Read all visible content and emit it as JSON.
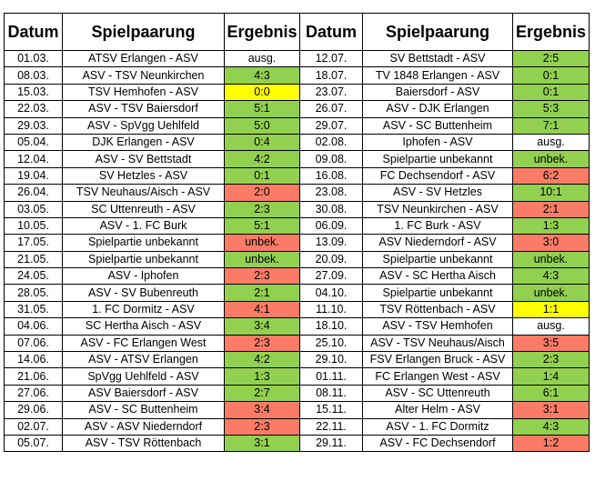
{
  "headers": [
    "Datum",
    "Spielpaarung",
    "Ergebnis",
    "Datum",
    "Spielpaarung",
    "Ergebnis"
  ],
  "colors": {
    "win": "#92d050",
    "loss": "#fa7c66",
    "draw": "#ffff00",
    "none": "#ffffff"
  },
  "rows": [
    {
      "left": {
        "date": "01.03.",
        "match": "ATSV Erlangen - ASV",
        "result": "ausg.",
        "status": "none"
      },
      "right": {
        "date": "12.07.",
        "match": "SV Bettstadt - ASV",
        "result": "2:5",
        "status": "win"
      }
    },
    {
      "left": {
        "date": "08.03.",
        "match": "ASV - TSV Neunkirchen",
        "result": "4:3",
        "status": "win"
      },
      "right": {
        "date": "18.07.",
        "match": "TV 1848 Erlangen - ASV",
        "result": "0:1",
        "status": "win"
      }
    },
    {
      "left": {
        "date": "15.03.",
        "match": "TSV Hemhofen - ASV",
        "result": "0:0",
        "status": "draw"
      },
      "right": {
        "date": "23.07.",
        "match": "Baiersdorf - ASV",
        "result": "0:1",
        "status": "win"
      }
    },
    {
      "left": {
        "date": "22.03.",
        "match": "ASV - TSV Baiersdorf",
        "result": "5:1",
        "status": "win"
      },
      "right": {
        "date": "26.07.",
        "match": "ASV - DJK Erlangen",
        "result": "5:3",
        "status": "win"
      }
    },
    {
      "left": {
        "date": "29.03.",
        "match": "ASV - SpVgg Uehlfeld",
        "result": "5:0",
        "status": "win"
      },
      "right": {
        "date": "29.07.",
        "match": "ASV - SC Buttenheim",
        "result": "7:1",
        "status": "win"
      }
    },
    {
      "left": {
        "date": "05.04.",
        "match": "DJK Erlangen - ASV",
        "result": "0:4",
        "status": "win"
      },
      "right": {
        "date": "02.08.",
        "match": "Iphofen - ASV",
        "result": "ausg.",
        "status": "none"
      }
    },
    {
      "left": {
        "date": "12.04.",
        "match": "ASV - SV Bettstadt",
        "result": "4:2",
        "status": "win"
      },
      "right": {
        "date": "09.08.",
        "match": "Spielpartie unbekannt",
        "result": "unbek.",
        "status": "win"
      }
    },
    {
      "left": {
        "date": "19.04.",
        "match": "SV Hetzles - ASV",
        "result": "0:1",
        "status": "win"
      },
      "right": {
        "date": "16.08.",
        "match": "FC Dechsendorf - ASV",
        "result": "6:2",
        "status": "loss"
      }
    },
    {
      "left": {
        "date": "26.04.",
        "match": "TSV Neuhaus/Aisch - ASV",
        "result": "2:0",
        "status": "loss"
      },
      "right": {
        "date": "23.08.",
        "match": "ASV - SV Hetzles",
        "result": "10:1",
        "status": "win"
      }
    },
    {
      "left": {
        "date": "03.05.",
        "match": "SC Uttenreuth - ASV",
        "result": "2:3",
        "status": "win"
      },
      "right": {
        "date": "30.08.",
        "match": "TSV Neunkirchen - ASV",
        "result": "2:1",
        "status": "loss"
      }
    },
    {
      "left": {
        "date": "10.05.",
        "match": "ASV - 1. FC Burk",
        "result": "5:1",
        "status": "win"
      },
      "right": {
        "date": "06.09.",
        "match": "1. FC Burk - ASV",
        "result": "1:3",
        "status": "win"
      }
    },
    {
      "left": {
        "date": "17.05.",
        "match": "Spielpartie unbekannt",
        "result": "unbek.",
        "status": "loss"
      },
      "right": {
        "date": "13.09.",
        "match": "ASV Niederndorf - ASV",
        "result": "3:0",
        "status": "loss"
      }
    },
    {
      "left": {
        "date": "21.05.",
        "match": "Spielpartie unbekannt",
        "result": "unbek.",
        "status": "win"
      },
      "right": {
        "date": "20.09.",
        "match": "Spielpartie unbekannt",
        "result": "unbek.",
        "status": "win"
      }
    },
    {
      "left": {
        "date": "24.05.",
        "match": "ASV - Iphofen",
        "result": "2:3",
        "status": "loss"
      },
      "right": {
        "date": "27.09.",
        "match": "ASV - SC Hertha Aisch",
        "result": "4:3",
        "status": "win"
      }
    },
    {
      "left": {
        "date": "28.05.",
        "match": "ASV - SV Bubenreuth",
        "result": "2:1",
        "status": "win"
      },
      "right": {
        "date": "04.10.",
        "match": "Spielpartie unbekannt",
        "result": "unbek.",
        "status": "win"
      }
    },
    {
      "left": {
        "date": "31.05.",
        "match": "1. FC Dormitz - ASV",
        "result": "4:1",
        "status": "loss"
      },
      "right": {
        "date": "11.10.",
        "match": "TSV Röttenbach - ASV",
        "result": "1:1",
        "status": "draw"
      }
    },
    {
      "left": {
        "date": "04.06.",
        "match": "SC Hertha Aisch - ASV",
        "result": "3:4",
        "status": "win"
      },
      "right": {
        "date": "18.10.",
        "match": "ASV - TSV Hemhofen",
        "result": "ausg.",
        "status": "none"
      }
    },
    {
      "left": {
        "date": "07.06.",
        "match": "ASV - FC Erlangen West",
        "result": "2:3",
        "status": "loss"
      },
      "right": {
        "date": "25.10.",
        "match": "ASV - TSV Neuhaus/Aisch",
        "result": "3:5",
        "status": "loss"
      }
    },
    {
      "left": {
        "date": "14.06.",
        "match": "ASV - ATSV Erlangen",
        "result": "4:2",
        "status": "win"
      },
      "right": {
        "date": "29.10.",
        "match": "FSV Erlangen Bruck - ASV",
        "result": "2:3",
        "status": "win"
      }
    },
    {
      "left": {
        "date": "21.06.",
        "match": "SpVgg Uehlfeld - ASV",
        "result": "1:3",
        "status": "win"
      },
      "right": {
        "date": "01.11.",
        "match": "FC Erlangen West - ASV",
        "result": "1:4",
        "status": "win"
      }
    },
    {
      "left": {
        "date": "27.06.",
        "match": "ASV Baiersdorf - ASV",
        "result": "2:7",
        "status": "win"
      },
      "right": {
        "date": "08.11.",
        "match": "ASV - SC Uttenreuth",
        "result": "6:1",
        "status": "win"
      }
    },
    {
      "left": {
        "date": "29.06.",
        "match": "ASV - SC Buttenheim",
        "result": "3:4",
        "status": "loss"
      },
      "right": {
        "date": "15.11.",
        "match": "Alter Helm - ASV",
        "result": "3:1",
        "status": "loss"
      }
    },
    {
      "left": {
        "date": "02.07.",
        "match": "ASV - ASV Niederndorf",
        "result": "2:3",
        "status": "loss"
      },
      "right": {
        "date": "22.11.",
        "match": "ASV - 1. FC Dormitz",
        "result": "4:3",
        "status": "win"
      }
    },
    {
      "left": {
        "date": "05.07.",
        "match": "ASV - TSV Röttenbach",
        "result": "3:1",
        "status": "win"
      },
      "right": {
        "date": "29.11.",
        "match": "ASV - FC Dechsendorf",
        "result": "1:2",
        "status": "loss"
      }
    }
  ]
}
